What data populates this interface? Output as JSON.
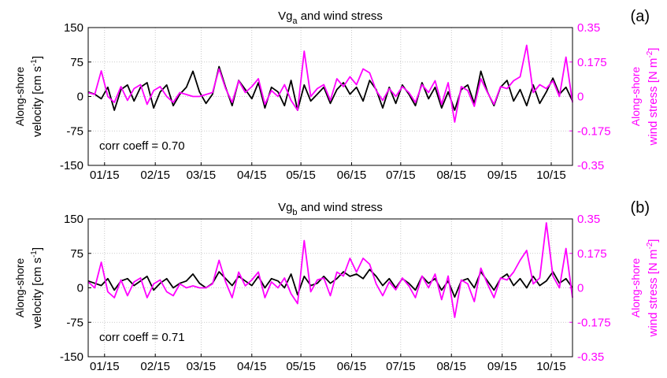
{
  "chart_data": [
    {
      "type": "line",
      "panel_label": "(a)",
      "title": {
        "main": "Vg",
        "subscript": "a",
        "rest": " and wind stress"
      },
      "ylabel": [
        "Along-shore",
        "velocity [cm s",
        "-1",
        "]"
      ],
      "y2label": [
        "Along-shore",
        "wind stress [N m",
        "-2",
        "]"
      ],
      "annotation": "corr coeff = 0.70",
      "grid": true,
      "x": [
        5,
        9,
        13,
        17,
        21,
        25,
        29,
        33,
        37,
        41,
        45,
        49,
        53,
        57,
        61,
        65,
        69,
        73,
        77,
        81,
        85,
        89,
        93,
        97,
        101,
        105,
        109,
        113,
        117,
        121,
        125,
        129,
        133,
        137,
        141,
        145,
        149,
        153,
        157,
        161,
        165,
        169,
        173,
        177,
        181,
        185,
        189,
        193,
        197,
        201,
        205,
        209,
        213,
        217,
        221,
        225,
        229,
        233,
        237,
        241,
        245,
        249,
        253,
        257,
        261,
        265,
        269,
        273,
        277,
        281,
        285,
        289,
        293,
        297,
        301
      ],
      "xlim": [
        5,
        301
      ],
      "xticks": [
        {
          "value": 15,
          "label": "01/15"
        },
        {
          "value": 46,
          "label": "02/15"
        },
        {
          "value": 74,
          "label": "03/15"
        },
        {
          "value": 105,
          "label": "04/15"
        },
        {
          "value": 135,
          "label": "05/15"
        },
        {
          "value": 166,
          "label": "06/15"
        },
        {
          "value": 196,
          "label": "07/15"
        },
        {
          "value": 227,
          "label": "08/15"
        },
        {
          "value": 258,
          "label": "09/15"
        },
        {
          "value": 288,
          "label": "10/15"
        }
      ],
      "ylim": [
        -150,
        150
      ],
      "yticks": [
        -150,
        -75,
        0,
        75,
        150
      ],
      "y2lim": [
        -0.35,
        0.35
      ],
      "y2ticks": [
        -0.35,
        -0.175,
        0,
        0.175,
        0.35
      ],
      "series": [
        {
          "color": "#000000",
          "values": [
            10,
            5,
            -5,
            20,
            -30,
            15,
            25,
            -10,
            20,
            30,
            -25,
            10,
            25,
            -20,
            5,
            20,
            55,
            10,
            -15,
            5,
            65,
            20,
            -20,
            35,
            15,
            -5,
            30,
            -25,
            20,
            10,
            -20,
            35,
            -30,
            25,
            -10,
            5,
            20,
            -15,
            15,
            30,
            5,
            20,
            -10,
            35,
            15,
            -25,
            20,
            -15,
            25,
            5,
            -20,
            30,
            -5,
            20,
            -25,
            10,
            -30,
            15,
            25,
            -15,
            55,
            10,
            -20,
            20,
            35,
            -10,
            15,
            -20,
            25,
            -15,
            10,
            40,
            5,
            20,
            -10
          ]
        },
        {
          "color": "#ff00ff",
          "axis": "y2",
          "values": [
            0.02,
            0.01,
            0.13,
            0.0,
            -0.03,
            0.05,
            -0.02,
            0.04,
            0.06,
            -0.04,
            0.03,
            0.05,
            0.0,
            -0.03,
            0.02,
            0.01,
            0.0,
            0.0,
            0.01,
            0.02,
            0.14,
            0.04,
            -0.03,
            0.08,
            0.02,
            0.05,
            0.09,
            -0.04,
            0.03,
            0.0,
            0.06,
            -0.02,
            -0.07,
            0.23,
            0.0,
            0.04,
            0.06,
            -0.02,
            0.09,
            0.05,
            0.1,
            0.06,
            0.14,
            0.12,
            0.03,
            -0.02,
            0.04,
            0.0,
            0.05,
            0.02,
            -0.03,
            0.06,
            0.02,
            0.08,
            -0.04,
            0.07,
            -0.13,
            0.05,
            0.03,
            -0.05,
            0.09,
            0.02,
            -0.04,
            0.05,
            0.04,
            0.08,
            0.1,
            0.26,
            0.02,
            0.06,
            0.04,
            0.08,
            0.0,
            0.2,
            -0.03
          ]
        }
      ]
    },
    {
      "type": "line",
      "panel_label": "(b)",
      "title": {
        "main": "Vg",
        "subscript": "b",
        "rest": " and wind stress"
      },
      "ylabel": [
        "Along-shore",
        "velocity [cm s",
        "-1",
        "]"
      ],
      "y2label": [
        "Along-shore",
        "wind stress [N m",
        "-2",
        "]"
      ],
      "annotation": "corr coeff = 0.71",
      "grid": true,
      "x": [
        5,
        9,
        13,
        17,
        21,
        25,
        29,
        33,
        37,
        41,
        45,
        49,
        53,
        57,
        61,
        65,
        69,
        73,
        77,
        81,
        85,
        89,
        93,
        97,
        101,
        105,
        109,
        113,
        117,
        121,
        125,
        129,
        133,
        137,
        141,
        145,
        149,
        153,
        157,
        161,
        165,
        169,
        173,
        177,
        181,
        185,
        189,
        193,
        197,
        201,
        205,
        209,
        213,
        217,
        221,
        225,
        229,
        233,
        237,
        241,
        245,
        249,
        253,
        257,
        261,
        265,
        269,
        273,
        277,
        281,
        285,
        289,
        293,
        297,
        301
      ],
      "xlim": [
        5,
        301
      ],
      "xticks": [
        {
          "value": 15,
          "label": "01/15"
        },
        {
          "value": 46,
          "label": "02/15"
        },
        {
          "value": 74,
          "label": "03/15"
        },
        {
          "value": 105,
          "label": "04/15"
        },
        {
          "value": 135,
          "label": "05/15"
        },
        {
          "value": 166,
          "label": "06/15"
        },
        {
          "value": 196,
          "label": "07/15"
        },
        {
          "value": 227,
          "label": "08/15"
        },
        {
          "value": 258,
          "label": "09/15"
        },
        {
          "value": 288,
          "label": "10/15"
        }
      ],
      "ylim": [
        -150,
        150
      ],
      "yticks": [
        -150,
        -75,
        0,
        75,
        150
      ],
      "y2lim": [
        -0.35,
        0.35
      ],
      "y2ticks": [
        -0.35,
        -0.175,
        0,
        0.175,
        0.35
      ],
      "series": [
        {
          "color": "#000000",
          "values": [
            15,
            10,
            5,
            20,
            -5,
            15,
            20,
            5,
            15,
            25,
            -5,
            10,
            20,
            0,
            10,
            15,
            30,
            10,
            0,
            10,
            35,
            20,
            5,
            25,
            15,
            5,
            25,
            0,
            20,
            15,
            0,
            30,
            -15,
            25,
            5,
            10,
            25,
            10,
            20,
            35,
            25,
            30,
            20,
            40,
            25,
            5,
            20,
            0,
            20,
            10,
            -5,
            25,
            10,
            20,
            -5,
            15,
            -20,
            15,
            20,
            0,
            35,
            15,
            -5,
            20,
            30,
            5,
            20,
            0,
            25,
            5,
            15,
            35,
            10,
            20,
            0
          ]
        },
        {
          "color": "#ff00ff",
          "axis": "y2",
          "values": [
            0.03,
            0.0,
            0.13,
            -0.02,
            -0.05,
            0.04,
            -0.04,
            0.03,
            0.05,
            -0.05,
            0.02,
            0.04,
            -0.02,
            -0.04,
            0.02,
            0.0,
            0.01,
            0.0,
            0.0,
            0.02,
            0.14,
            0.03,
            -0.05,
            0.08,
            0.01,
            0.04,
            0.08,
            -0.05,
            0.03,
            0.0,
            0.05,
            -0.03,
            -0.08,
            0.24,
            -0.02,
            0.04,
            0.05,
            -0.04,
            0.08,
            0.06,
            0.15,
            0.08,
            0.15,
            0.12,
            0.02,
            -0.04,
            0.03,
            -0.01,
            0.05,
            0.01,
            -0.05,
            0.06,
            0.0,
            0.07,
            -0.06,
            0.06,
            -0.15,
            0.04,
            0.02,
            -0.07,
            0.1,
            0.02,
            -0.05,
            0.05,
            0.04,
            0.08,
            0.14,
            0.19,
            0.02,
            0.05,
            0.33,
            0.06,
            0.0,
            0.2,
            -0.05
          ]
        }
      ]
    }
  ]
}
